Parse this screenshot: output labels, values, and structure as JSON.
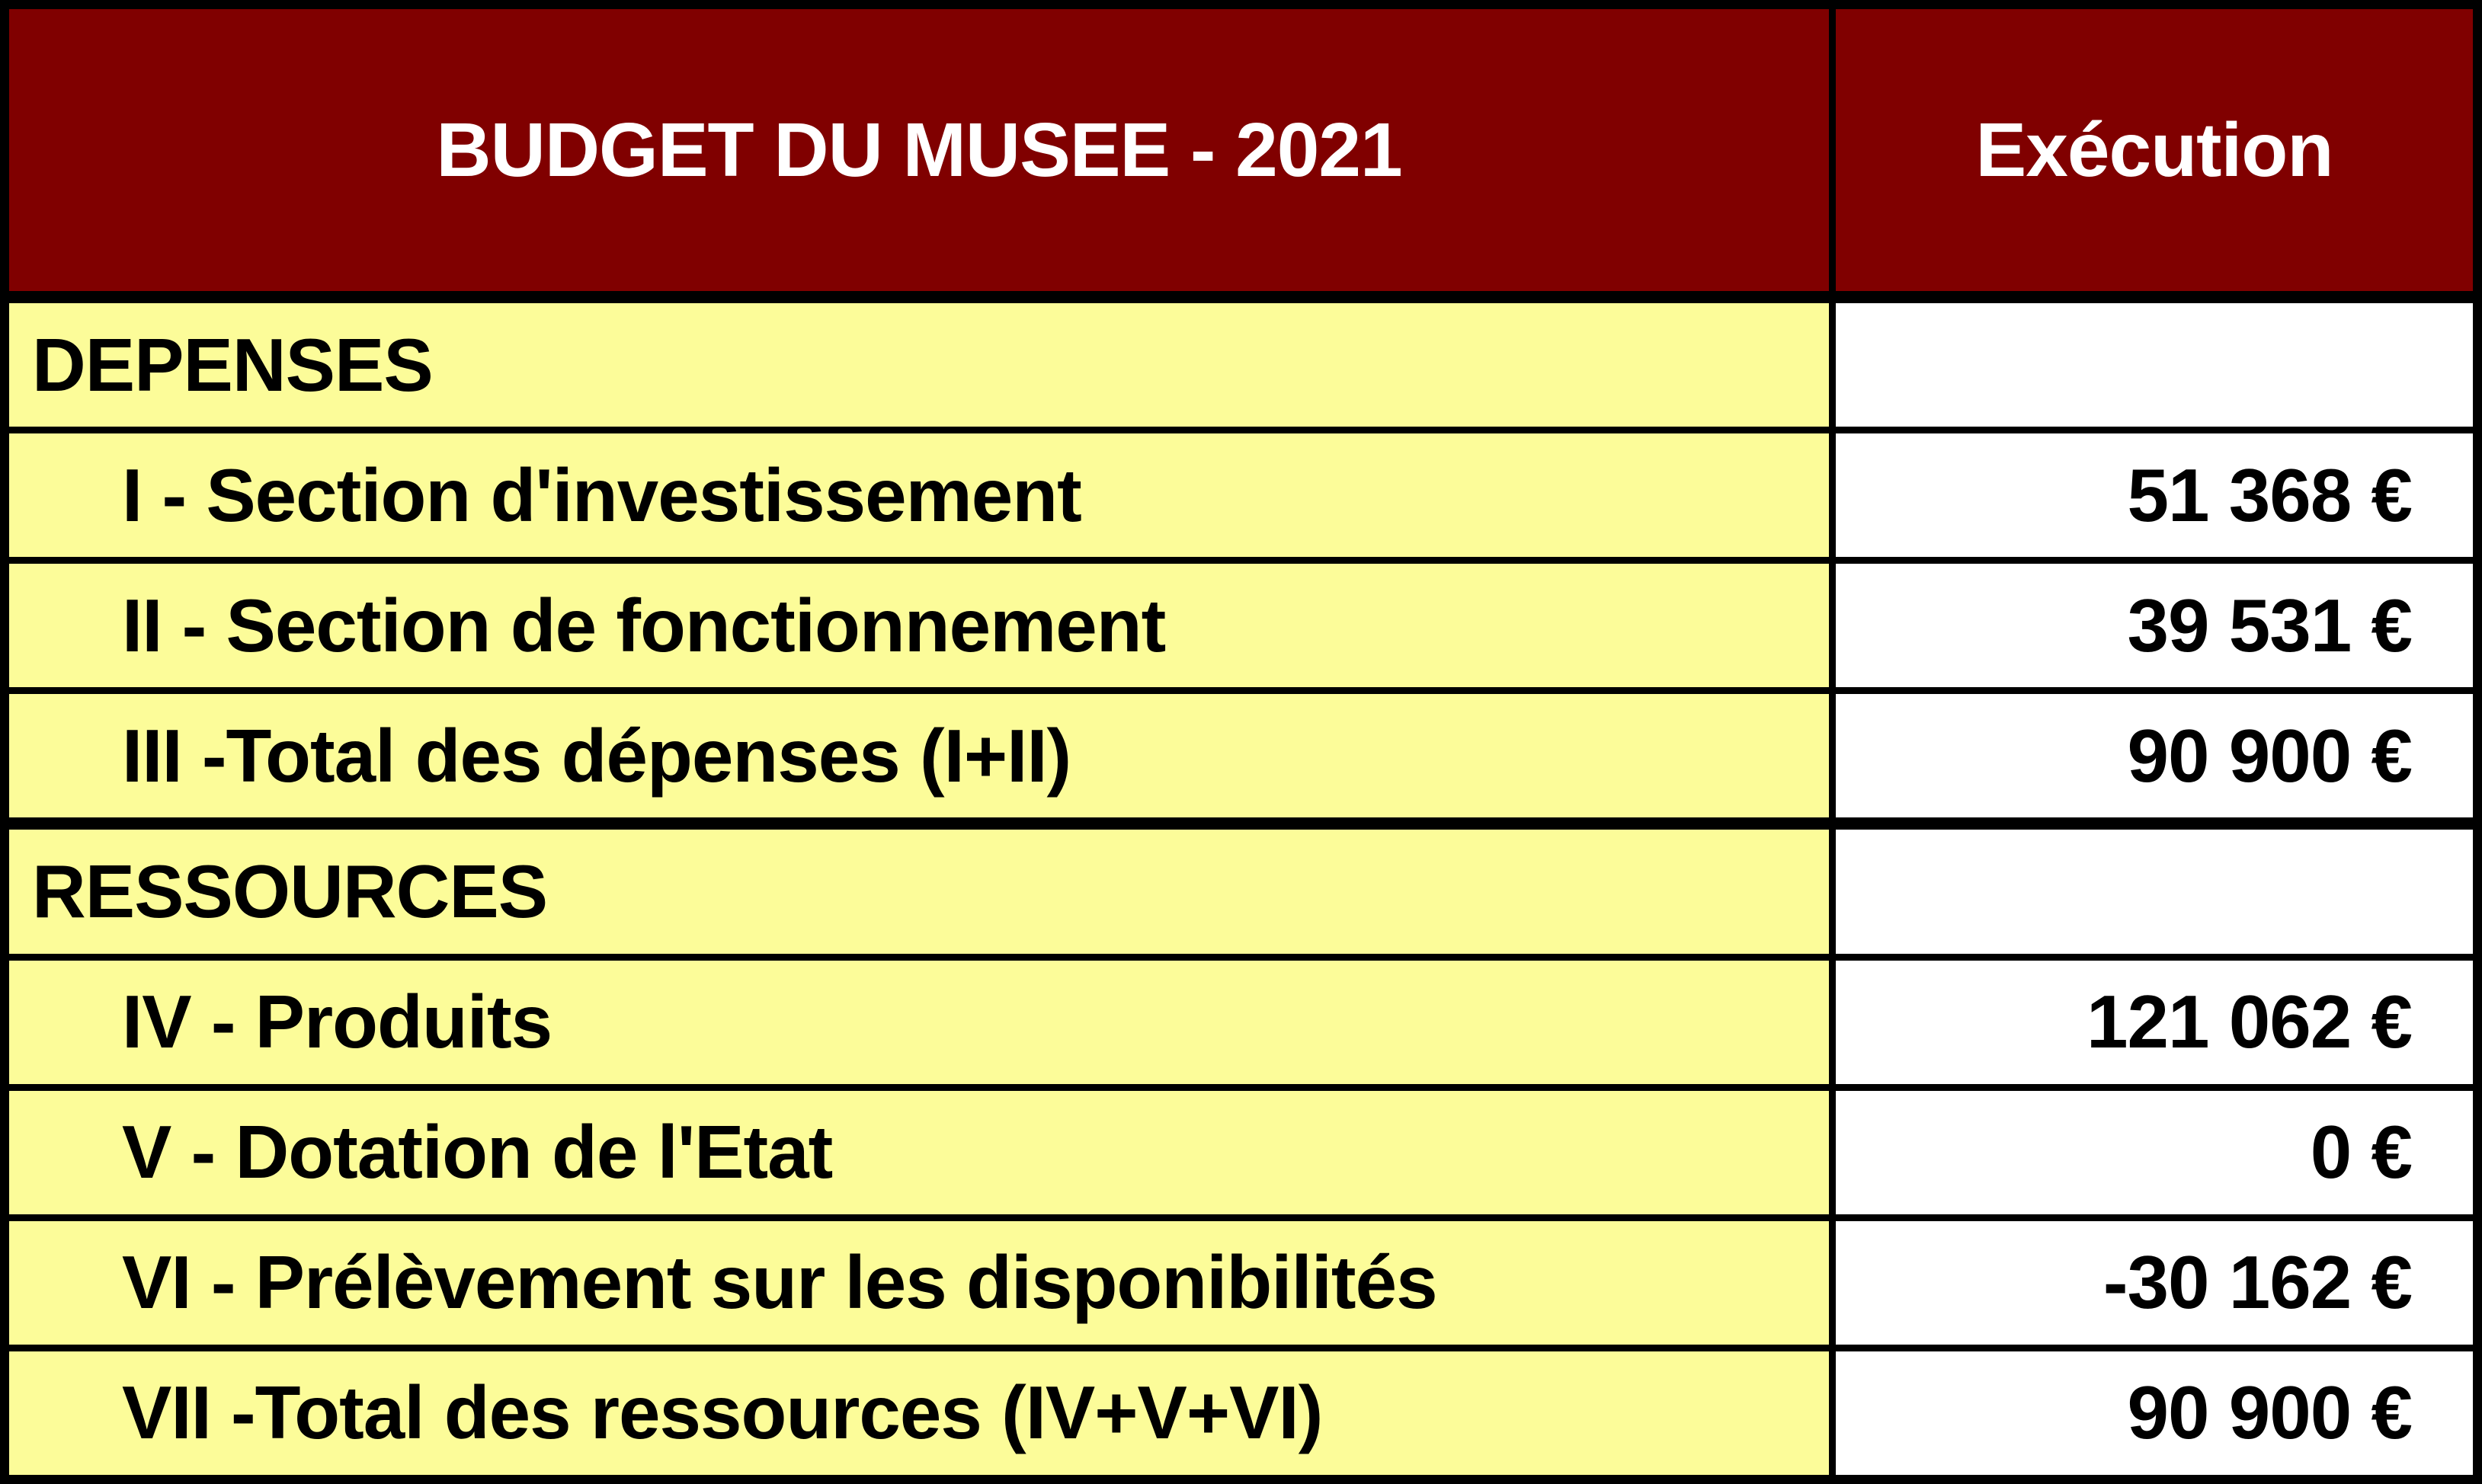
{
  "chart_data": {
    "type": "table",
    "title": "BUDGET DU MUSEE - 2021",
    "value_column": "Exécution",
    "currency": "EUR",
    "rows": [
      {
        "kind": "section",
        "label": "DEPENSES",
        "value": "",
        "numeric": null
      },
      {
        "kind": "item",
        "label": "I - Section d'investissement",
        "value": "51 368 €",
        "numeric": 51368
      },
      {
        "kind": "item",
        "label": "II - Section de fonctionnement",
        "value": "39 531 €",
        "numeric": 39531
      },
      {
        "kind": "item",
        "label": "III -Total des dépenses (I+II)",
        "value": "90 900 €",
        "numeric": 90900
      },
      {
        "kind": "section",
        "label": "RESSOURCES",
        "value": "",
        "numeric": null
      },
      {
        "kind": "item",
        "label": "IV - Produits",
        "value": "121 062 €",
        "numeric": 121062
      },
      {
        "kind": "item",
        "label": "V - Dotation de l'Etat",
        "value": "0 €",
        "numeric": 0
      },
      {
        "kind": "item",
        "label": "VI - Prélèvement sur les disponibilités",
        "value": "-30 162 €",
        "numeric": -30162
      },
      {
        "kind": "item",
        "label": "VII -Total des ressources (IV+V+VI)",
        "value": "90 900 €",
        "numeric": 90900
      }
    ],
    "layout": {
      "legend": "left column = budget line labels, right column = executed amounts, thick black rules separate header and the two sections"
    },
    "colors": {
      "header_bg": "#800000",
      "header_text": "#FFFFFF",
      "label_bg": "#FCFC99",
      "value_bg": "#FFFFFF",
      "body_text": "#000000",
      "border": "#000000"
    }
  }
}
